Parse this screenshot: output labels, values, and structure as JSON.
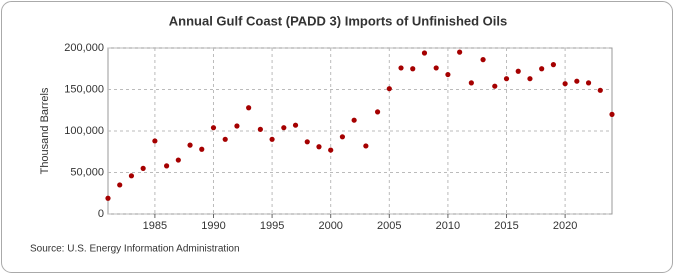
{
  "chart_data": {
    "type": "scatter",
    "title": "Annual Gulf Coast (PADD 3) Imports of Unfinished Oils",
    "y_label": "Thousand Barrels",
    "source": "Source: U.S. Energy Information Administration",
    "x": [
      1981,
      1982,
      1983,
      1984,
      1985,
      1986,
      1987,
      1988,
      1989,
      1990,
      1991,
      1992,
      1993,
      1994,
      1995,
      1996,
      1997,
      1998,
      1999,
      2000,
      2001,
      2002,
      2003,
      2004,
      2005,
      2006,
      2007,
      2008,
      2009,
      2010,
      2011,
      2012,
      2013,
      2014,
      2015,
      2016,
      2017,
      2018,
      2019,
      2020,
      2021,
      2022,
      2023,
      2024
    ],
    "values": [
      19000,
      35000,
      46000,
      55000,
      88000,
      58000,
      65000,
      83000,
      78000,
      104000,
      90000,
      106000,
      128000,
      102000,
      90000,
      104000,
      107000,
      87000,
      81000,
      77000,
      93000,
      113000,
      82000,
      123000,
      151000,
      176000,
      175000,
      194000,
      176000,
      168000,
      195000,
      158000,
      186000,
      154000,
      163000,
      172000,
      163000,
      175000,
      180000,
      157000,
      160000,
      158000,
      149000,
      120000
    ],
    "color": "#a50000",
    "xlim": [
      1981,
      2024
    ],
    "xticks": [
      1985,
      1990,
      1995,
      2000,
      2005,
      2010,
      2015,
      2020
    ],
    "ylim": [
      0,
      200000
    ],
    "yticks": [
      0,
      {
        "value": 50000,
        "label": "50,000"
      },
      {
        "value": 100000,
        "label": "100,000"
      },
      {
        "value": 150000,
        "label": "150,000"
      },
      {
        "value": 200000,
        "label": "200,000"
      }
    ],
    "grid": true
  }
}
